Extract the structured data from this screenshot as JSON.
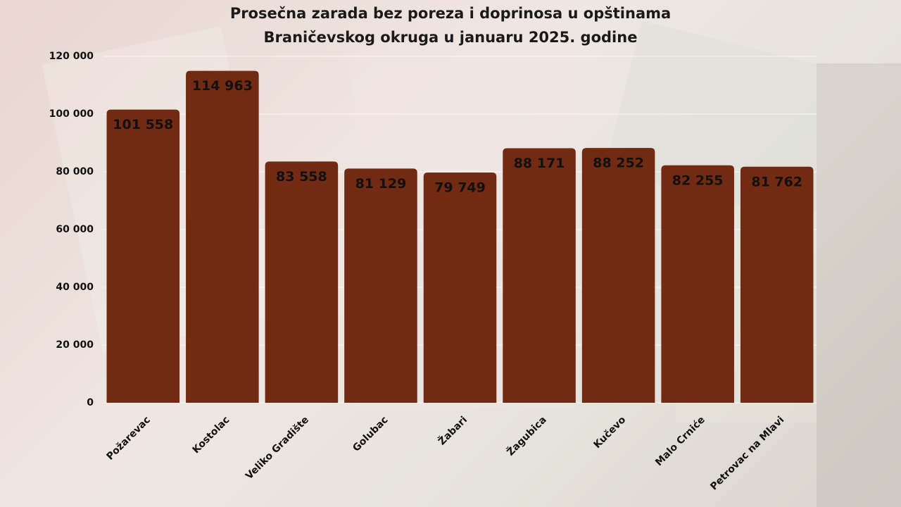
{
  "chart_data": {
    "type": "bar",
    "title": "Prosečna zarada bez poreza i doprinosa u opštinama Braničevskog okruga u januaru 2025. godine",
    "categories": [
      "Požarevac",
      "Kostolac",
      "Veliko Gradište",
      "Golubac",
      "Žabari",
      "Žagubica",
      "Kučevo",
      "Malo Crniće",
      "Petrovac na Mlavi"
    ],
    "values": [
      101558,
      114963,
      83558,
      81129,
      79749,
      88171,
      88252,
      82255,
      81762
    ],
    "value_labels": [
      "101 558",
      "114 963",
      "83 558",
      "81 129",
      "79 749",
      "88 171",
      "88 252",
      "82 255",
      "81 762"
    ],
    "color": "#722a12",
    "ylim": [
      0,
      120000
    ],
    "yticks": [
      0,
      {
        "value": 20000,
        "label": "20 000"
      },
      {
        "value": 40000,
        "label": "40 000"
      },
      {
        "value": 60000,
        "label": "60 000"
      },
      {
        "value": 80000,
        "label": "80 000"
      },
      {
        "value": 100000,
        "label": "100 000"
      },
      {
        "value": 120000,
        "label": "120 000"
      }
    ],
    "grid": true
  }
}
